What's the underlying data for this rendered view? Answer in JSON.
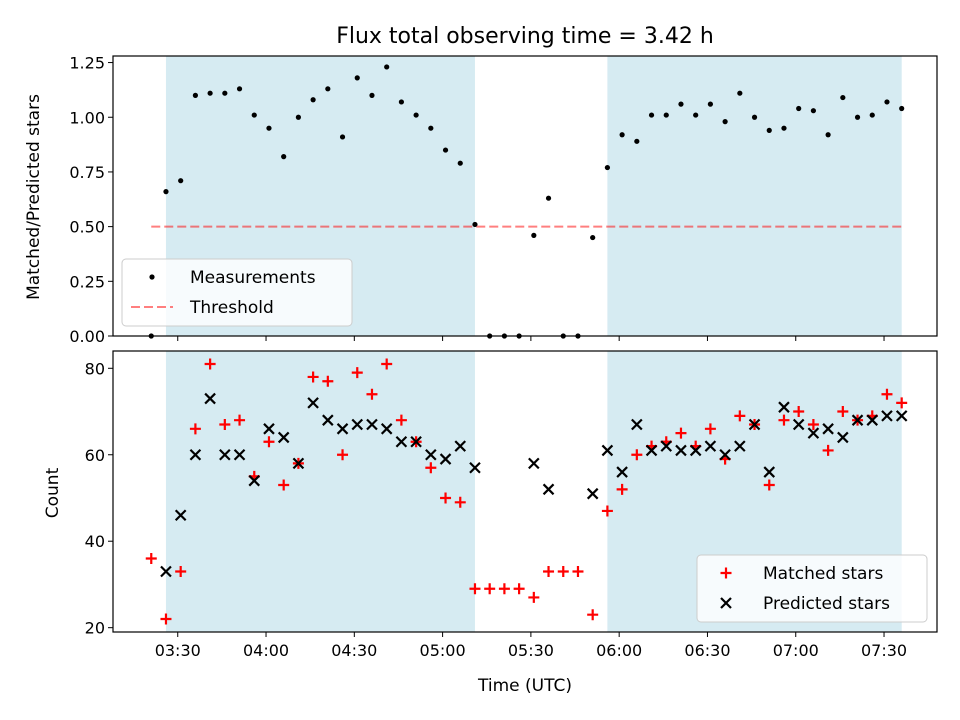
{
  "figure": {
    "title": "Flux total observing time = 3.42 h",
    "xlabel": "Time (UTC)",
    "colors": {
      "shade": "#add8e6",
      "threshold": "#ff0000",
      "matched": "#ff0000",
      "predicted": "#000000",
      "measurement": "#000000"
    }
  },
  "chart_data": [
    {
      "type": "scatter",
      "ylabel": "Matched/Predicted stars",
      "xlim": [
        "03:08",
        "07:48"
      ],
      "ylim": [
        0,
        1.28
      ],
      "yticks": [
        0,
        0.25,
        0.5,
        0.75,
        1.0,
        1.25
      ],
      "ytick_labels": [
        "0.00",
        "0.25",
        "0.50",
        "0.75",
        "1.00",
        "1.25"
      ],
      "shaded_intervals": [
        [
          "03:26",
          "05:11"
        ],
        [
          "05:56",
          "07:36"
        ]
      ],
      "legend": {
        "position": "lower-left",
        "entries": [
          "Measurements",
          "Threshold"
        ]
      },
      "threshold": {
        "name": "Threshold",
        "y": 0.5,
        "x_range": [
          "03:21",
          "07:36"
        ]
      },
      "series": [
        {
          "name": "Measurements",
          "marker": "dot",
          "x": [
            "03:21",
            "03:26",
            "03:31",
            "03:36",
            "03:41",
            "03:46",
            "03:51",
            "03:56",
            "04:01",
            "04:06",
            "04:11",
            "04:16",
            "04:21",
            "04:26",
            "04:31",
            "04:36",
            "04:41",
            "04:46",
            "04:51",
            "04:56",
            "05:01",
            "05:06",
            "05:11",
            "05:16",
            "05:21",
            "05:26",
            "05:31",
            "05:36",
            "05:41",
            "05:46",
            "05:51",
            "05:56",
            "06:01",
            "06:06",
            "06:11",
            "06:16",
            "06:21",
            "06:26",
            "06:31",
            "06:36",
            "06:41",
            "06:46",
            "06:51",
            "06:56",
            "07:01",
            "07:06",
            "07:11",
            "07:16",
            "07:21",
            "07:26",
            "07:31",
            "07:36"
          ],
          "y": [
            0.0,
            0.66,
            0.71,
            1.1,
            1.11,
            1.11,
            1.13,
            1.01,
            0.95,
            0.82,
            1.0,
            1.08,
            1.13,
            0.91,
            1.18,
            1.1,
            1.23,
            1.07,
            1.01,
            0.95,
            0.85,
            0.79,
            0.51,
            0.0,
            0.0,
            0.0,
            0.46,
            0.63,
            0.0,
            0.0,
            0.45,
            0.77,
            0.92,
            0.89,
            1.01,
            1.01,
            1.06,
            1.01,
            1.06,
            0.98,
            1.11,
            1.0,
            0.94,
            0.95,
            1.04,
            1.03,
            0.92,
            1.09,
            1.0,
            1.01,
            1.07,
            1.04
          ]
        }
      ]
    },
    {
      "type": "scatter",
      "ylabel": "Count",
      "xlim": [
        "03:08",
        "07:48"
      ],
      "ylim": [
        19,
        84
      ],
      "yticks": [
        20,
        40,
        60,
        80
      ],
      "ytick_labels": [
        "20",
        "40",
        "60",
        "80"
      ],
      "xticks": [
        "03:30",
        "04:00",
        "04:30",
        "05:00",
        "05:30",
        "06:00",
        "06:30",
        "07:00",
        "07:30"
      ],
      "xtick_labels": [
        "03:30",
        "04:00",
        "04:30",
        "05:00",
        "05:30",
        "06:00",
        "06:30",
        "07:00",
        "07:30"
      ],
      "shaded_intervals": [
        [
          "03:26",
          "05:11"
        ],
        [
          "05:56",
          "07:36"
        ]
      ],
      "legend": {
        "position": "lower-right",
        "entries": [
          "Matched stars",
          "Predicted stars"
        ]
      },
      "series": [
        {
          "name": "Matched stars",
          "marker": "plus",
          "x": [
            "03:21",
            "03:26",
            "03:31",
            "03:36",
            "03:41",
            "03:46",
            "03:51",
            "03:56",
            "04:01",
            "04:06",
            "04:11",
            "04:16",
            "04:21",
            "04:26",
            "04:31",
            "04:36",
            "04:41",
            "04:46",
            "04:51",
            "04:56",
            "05:01",
            "05:06",
            "05:11",
            "05:16",
            "05:21",
            "05:26",
            "05:31",
            "05:36",
            "05:41",
            "05:46",
            "05:51",
            "05:56",
            "06:01",
            "06:06",
            "06:11",
            "06:16",
            "06:21",
            "06:26",
            "06:31",
            "06:36",
            "06:41",
            "06:46",
            "06:51",
            "06:56",
            "07:01",
            "07:06",
            "07:11",
            "07:16",
            "07:21",
            "07:26",
            "07:31",
            "07:36"
          ],
          "y": [
            36,
            22,
            33,
            66,
            81,
            67,
            68,
            55,
            63,
            53,
            58,
            78,
            77,
            60,
            79,
            74,
            81,
            68,
            63,
            57,
            50,
            49,
            29,
            29,
            29,
            29,
            27,
            33,
            33,
            33,
            23,
            47,
            52,
            60,
            62,
            63,
            65,
            62,
            66,
            59,
            69,
            67,
            53,
            68,
            70,
            67,
            61,
            70,
            68,
            69,
            74,
            72
          ]
        },
        {
          "name": "Predicted stars",
          "marker": "x",
          "x": [
            "03:26",
            "03:31",
            "03:36",
            "03:41",
            "03:46",
            "03:51",
            "03:56",
            "04:01",
            "04:06",
            "04:11",
            "04:16",
            "04:21",
            "04:26",
            "04:31",
            "04:36",
            "04:41",
            "04:46",
            "04:51",
            "04:56",
            "05:01",
            "05:06",
            "05:11",
            "05:31",
            "05:36",
            "05:51",
            "05:56",
            "06:01",
            "06:06",
            "06:11",
            "06:16",
            "06:21",
            "06:26",
            "06:31",
            "06:36",
            "06:41",
            "06:46",
            "06:51",
            "06:56",
            "07:01",
            "07:06",
            "07:11",
            "07:16",
            "07:21",
            "07:26",
            "07:31",
            "07:36"
          ],
          "y": [
            33,
            46,
            60,
            73,
            60,
            60,
            54,
            66,
            64,
            58,
            72,
            68,
            66,
            67,
            67,
            66,
            63,
            63,
            60,
            59,
            62,
            57,
            58,
            52,
            51,
            61,
            56,
            67,
            61,
            62,
            61,
            61,
            62,
            60,
            62,
            67,
            56,
            71,
            67,
            65,
            66,
            64,
            68,
            68,
            69,
            69
          ]
        }
      ]
    }
  ]
}
